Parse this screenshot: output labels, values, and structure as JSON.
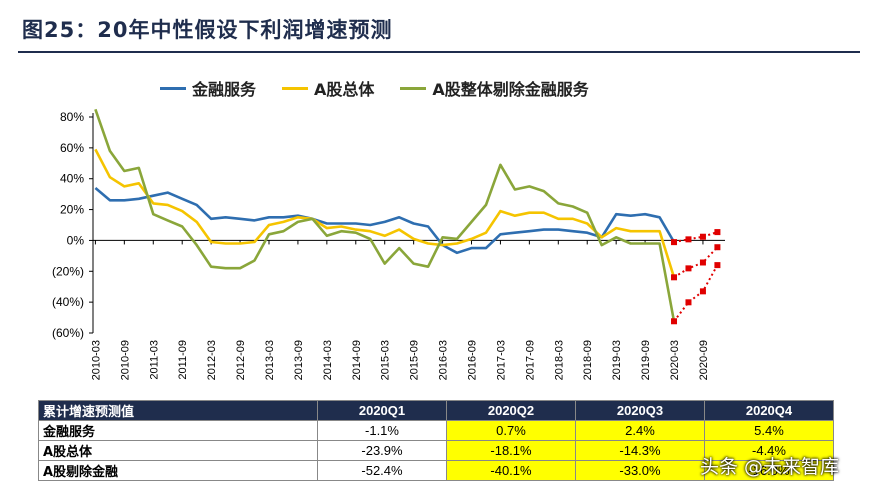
{
  "page_title": "图25：20年中性假设下利润增速预测",
  "legend": [
    {
      "name": "金融服务",
      "color": "#2e6eb0"
    },
    {
      "name": "A股总体",
      "color": "#f5c400"
    },
    {
      "name": "A股整体剔除金融服务",
      "color": "#8aa63a"
    }
  ],
  "chart_data": {
    "type": "line",
    "ylim": [
      -60,
      80
    ],
    "yticks": [
      "80%",
      "60%",
      "40%",
      "20%",
      "0%",
      "(20%)",
      "(40%)",
      "(60%)"
    ],
    "ytick_values": [
      80,
      60,
      40,
      20,
      0,
      -20,
      -40,
      -60
    ],
    "x_labels": [
      "2010-03",
      "2010-09",
      "2011-03",
      "2011-09",
      "2012-03",
      "2012-09",
      "2013-03",
      "2013-09",
      "2014-03",
      "2014-09",
      "2015-03",
      "2015-09",
      "2016-03",
      "2016-09",
      "2017-03",
      "2017-09",
      "2018-03",
      "2018-09",
      "2019-03",
      "2019-09",
      "2020-03",
      "2020-09"
    ],
    "x": [
      "2010-03",
      "2010-06",
      "2010-09",
      "2010-12",
      "2011-03",
      "2011-06",
      "2011-09",
      "2011-12",
      "2012-03",
      "2012-06",
      "2012-09",
      "2012-12",
      "2013-03",
      "2013-06",
      "2013-09",
      "2013-12",
      "2014-03",
      "2014-06",
      "2014-09",
      "2014-12",
      "2015-03",
      "2015-06",
      "2015-09",
      "2015-12",
      "2016-03",
      "2016-06",
      "2016-09",
      "2016-12",
      "2017-03",
      "2017-06",
      "2017-09",
      "2017-12",
      "2018-03",
      "2018-06",
      "2018-09",
      "2018-12",
      "2019-03",
      "2019-06",
      "2019-09",
      "2019-12",
      "2020-03"
    ],
    "series": [
      {
        "name": "金融服务",
        "color": "#2e6eb0",
        "values": [
          34,
          26,
          26,
          27,
          29,
          31,
          27,
          23,
          14,
          15,
          14,
          13,
          15,
          15,
          16,
          14,
          11,
          11,
          11,
          10,
          12,
          15,
          11,
          9,
          -3,
          -8,
          -5,
          -5,
          4,
          5,
          6,
          7,
          7,
          6,
          5,
          2,
          17,
          16,
          17,
          15,
          -1
        ]
      },
      {
        "name": "A股总体",
        "color": "#f5c400",
        "values": [
          59,
          41,
          35,
          37,
          24,
          23,
          19,
          12,
          -1,
          -2,
          -2,
          -1,
          10,
          12,
          15,
          14,
          8,
          9,
          7,
          6,
          3,
          7,
          1,
          -2,
          -3,
          -2,
          1,
          5,
          19,
          16,
          18,
          18,
          14,
          14,
          11,
          2,
          8,
          6,
          6,
          6,
          -23.9
        ]
      },
      {
        "name": "A股整体剔除金融服务",
        "color": "#8aa63a",
        "values": [
          85,
          58,
          45,
          47,
          17,
          13,
          9,
          -3,
          -17,
          -18,
          -18,
          -13,
          4,
          6,
          12,
          14,
          3,
          6,
          5,
          1,
          -15,
          -5,
          -15,
          -17,
          2,
          1,
          12,
          23,
          49,
          33,
          35,
          32,
          24,
          22,
          18,
          -3,
          2,
          -2,
          -2,
          -2,
          -52.4
        ]
      }
    ],
    "forecast": {
      "x": [
        "2020-03",
        "2020-06",
        "2020-09",
        "2020-12"
      ],
      "series": [
        {
          "name": "金融服务",
          "values": [
            -1.1,
            0.7,
            2.4,
            5.4
          ]
        },
        {
          "name": "A股总体",
          "values": [
            -23.9,
            -18.1,
            -14.3,
            -4.4
          ]
        },
        {
          "name": "A股剔除金融",
          "values": [
            -52.4,
            -40.1,
            -33.0,
            -16.0
          ]
        }
      ],
      "color": "#e00000"
    }
  },
  "table": {
    "headers": [
      "累计增速预测值",
      "2020Q1",
      "2020Q2",
      "2020Q3",
      "2020Q4"
    ],
    "rows": [
      {
        "label": "金融服务",
        "cells": [
          "-1.1%",
          "0.7%",
          "2.4%",
          "5.4%"
        ]
      },
      {
        "label": "A股总体",
        "cells": [
          "-23.9%",
          "-18.1%",
          "-14.3%",
          "-4.4%"
        ]
      },
      {
        "label": "A股剔除金融",
        "cells": [
          "-52.4%",
          "-40.1%",
          "-33.0%",
          "-16.0%"
        ]
      }
    ]
  },
  "watermark": "头条 @未来智库"
}
